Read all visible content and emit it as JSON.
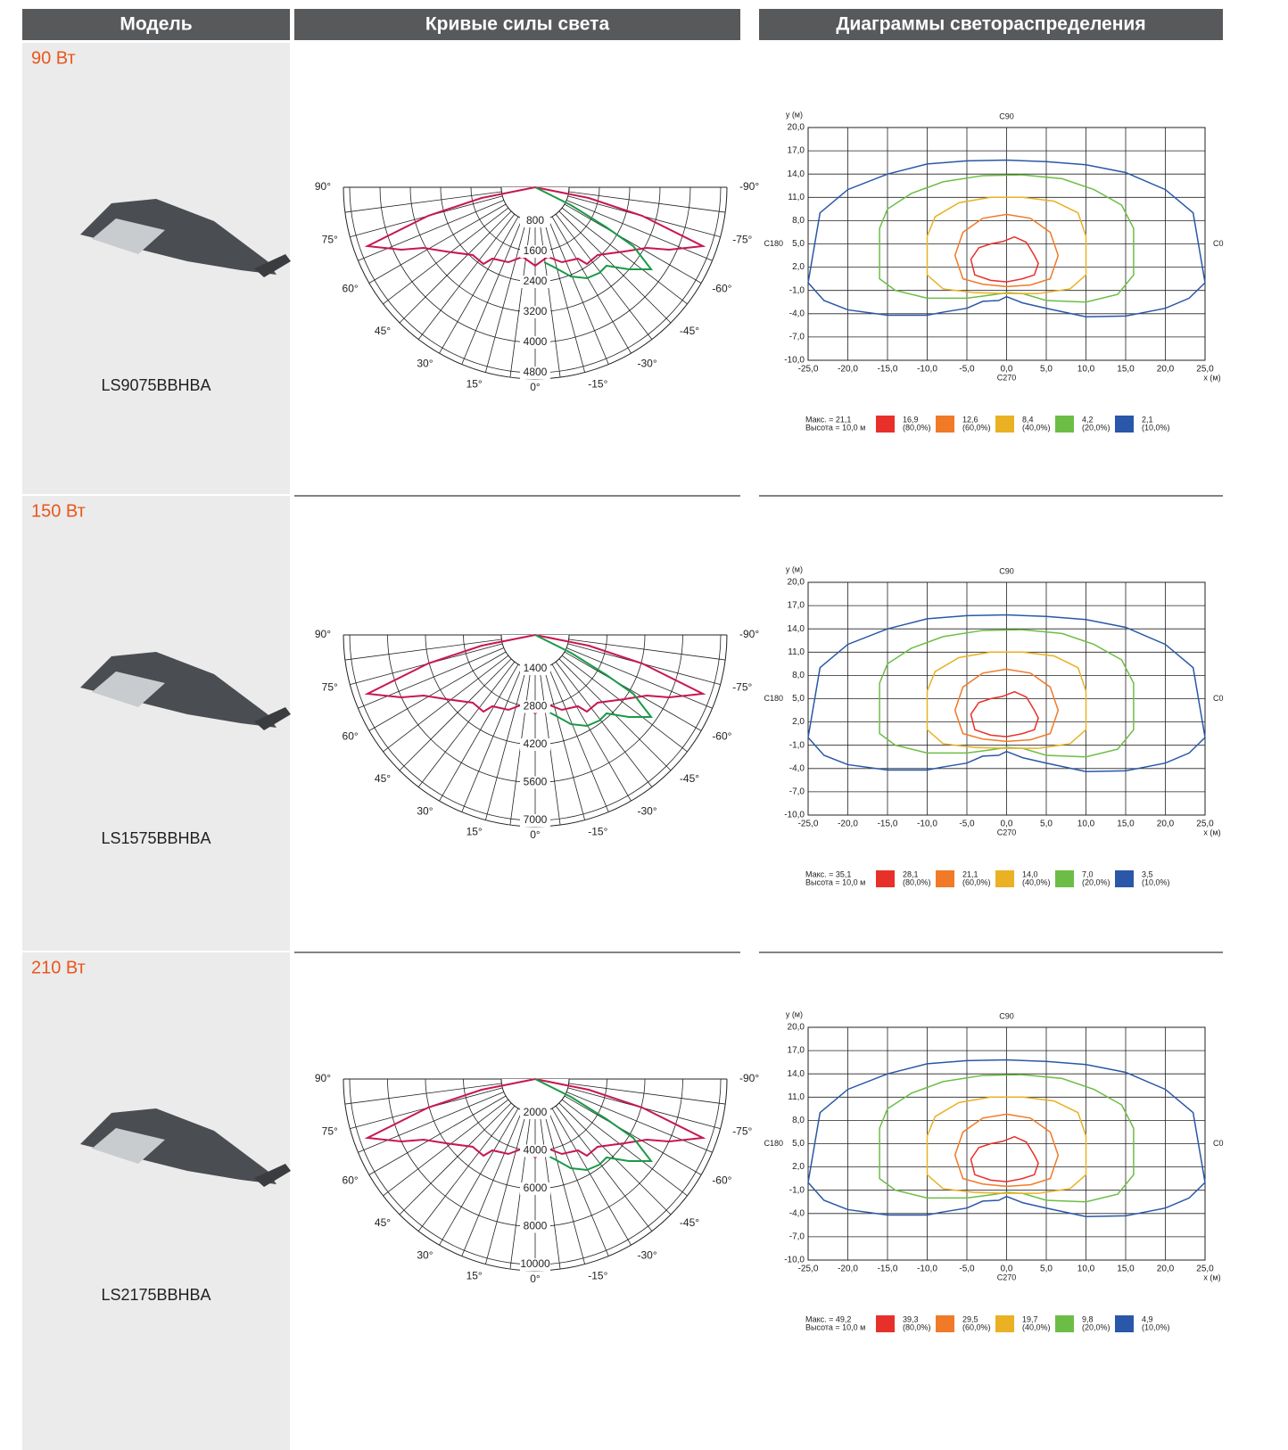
{
  "header": {
    "columns": [
      "Модель",
      "Кривые силы света",
      "Диаграммы светораспределения"
    ]
  },
  "rows": [
    {
      "power": "90 Вт",
      "model": "LS9075BBHBA",
      "polar": {
        "angles_left": [
          "90°",
          "75°",
          "60°",
          "45°",
          "30°",
          "15°"
        ],
        "bottom": "0°",
        "angles_right": [
          "-90°",
          "-75°",
          "-60°",
          "-45°",
          "-30°",
          "-15°"
        ],
        "rings": [
          "800",
          "1600",
          "2400",
          "3200",
          "4000",
          "4800"
        ]
      },
      "isolux": {
        "y_label": "y (м)",
        "x_label": "x (м)",
        "top": "C90",
        "bottom": "C270",
        "left": "C180",
        "right": "C0",
        "yticks": [
          "20,0",
          "17,0",
          "14,0",
          "11,0",
          "8,0",
          "5,0",
          "2,0",
          "-1,0",
          "-4,0",
          "-7,0",
          "-10,0"
        ],
        "xticks": [
          "-25,0",
          "-20,0",
          "-15,0",
          "-10,0",
          "-5,0",
          "0,0",
          "5,0",
          "10,0",
          "15,0",
          "20,0",
          "25,0"
        ],
        "max": "Макс. = 21,1",
        "height": "Высота = 10,0 м",
        "legend": [
          {
            "value": "16,9",
            "percent": "(80,0%)",
            "color": "#e8302a"
          },
          {
            "value": "12,6",
            "percent": "(60,0%)",
            "color": "#f07a28"
          },
          {
            "value": "8,4",
            "percent": "(40,0%)",
            "color": "#e9b123"
          },
          {
            "value": "4,2",
            "percent": "(20,0%)",
            "color": "#6cbd45"
          },
          {
            "value": "2,1",
            "percent": "(10,0%)",
            "color": "#2a57a8"
          }
        ]
      }
    },
    {
      "power": "150 Вт",
      "model": "LS1575BBHBA",
      "polar": {
        "angles_left": [
          "90°",
          "75°",
          "60°",
          "45°",
          "30°",
          "15°"
        ],
        "bottom": "0°",
        "angles_right": [
          "-90°",
          "-75°",
          "-60°",
          "-45°",
          "-30°",
          "-15°"
        ],
        "rings": [
          "1400",
          "2800",
          "4200",
          "5600",
          "7000"
        ]
      },
      "isolux": {
        "y_label": "y (м)",
        "x_label": "x (м)",
        "top": "C90",
        "bottom": "C270",
        "left": "C180",
        "right": "C0",
        "yticks": [
          "20,0",
          "17,0",
          "14,0",
          "11,0",
          "8,0",
          "5,0",
          "2,0",
          "-1,0",
          "-4,0",
          "-7,0",
          "-10,0"
        ],
        "xticks": [
          "-25,0",
          "-20,0",
          "-15,0",
          "-10,0",
          "-5,0",
          "0,0",
          "5,0",
          "10,0",
          "15,0",
          "20,0",
          "25,0"
        ],
        "max": "Макс. = 35,1",
        "height": "Высота = 10,0 м",
        "legend": [
          {
            "value": "28,1",
            "percent": "(80,0%)",
            "color": "#e8302a"
          },
          {
            "value": "21,1",
            "percent": "(60,0%)",
            "color": "#f07a28"
          },
          {
            "value": "14,0",
            "percent": "(40,0%)",
            "color": "#e9b123"
          },
          {
            "value": "7,0",
            "percent": "(20,0%)",
            "color": "#6cbd45"
          },
          {
            "value": "3,5",
            "percent": "(10,0%)",
            "color": "#2a57a8"
          }
        ]
      }
    },
    {
      "power": "210 Вт",
      "model": "LS2175BBHBA",
      "polar": {
        "angles_left": [
          "90°",
          "75°",
          "60°",
          "45°",
          "30°",
          "15°"
        ],
        "bottom": "0°",
        "angles_right": [
          "-90°",
          "-75°",
          "-60°",
          "-45°",
          "-30°",
          "-15°"
        ],
        "rings": [
          "2000",
          "4000",
          "6000",
          "8000",
          "10000"
        ]
      },
      "isolux": {
        "y_label": "y (м)",
        "x_label": "x (м)",
        "top": "C90",
        "bottom": "C270",
        "left": "C180",
        "right": "C0",
        "yticks": [
          "20,0",
          "17,0",
          "14,0",
          "11,0",
          "8,0",
          "5,0",
          "2,0",
          "-1,0",
          "-4,0",
          "-7,0",
          "-10,0"
        ],
        "xticks": [
          "-25,0",
          "-20,0",
          "-15,0",
          "-10,0",
          "-5,0",
          "0,0",
          "5,0",
          "10,0",
          "15,0",
          "20,0",
          "25,0"
        ],
        "max": "Макс. = 49,2",
        "height": "Высота = 10,0 м",
        "legend": [
          {
            "value": "39,3",
            "percent": "(80,0%)",
            "color": "#e8302a"
          },
          {
            "value": "29,5",
            "percent": "(60,0%)",
            "color": "#f07a28"
          },
          {
            "value": "19,7",
            "percent": "(40,0%)",
            "color": "#e9b123"
          },
          {
            "value": "9,8",
            "percent": "(20,0%)",
            "color": "#6cbd45"
          },
          {
            "value": "4,9",
            "percent": "(10,0%)",
            "color": "#2a57a8"
          }
        ]
      }
    }
  ]
}
